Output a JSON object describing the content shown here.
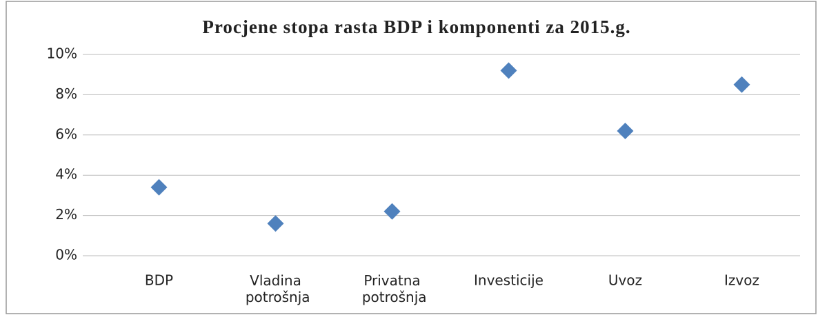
{
  "chart_data": {
    "type": "scatter",
    "title": "Procjene stopa rasta BDP i komponenti za 2015.g.",
    "categories": [
      "BDP",
      "Vladina potrošnja",
      "Privatna potrošnja",
      "Investicije",
      "Uvoz",
      "Izvoz"
    ],
    "values": [
      3.4,
      1.6,
      2.2,
      9.2,
      6.2,
      8.5
    ],
    "color": "#4f81bd",
    "ylim": [
      0,
      10
    ],
    "yticks": [
      {
        "value": 0,
        "label": "0%"
      },
      {
        "value": 2,
        "label": "2%"
      },
      {
        "value": 4,
        "label": "4%"
      },
      {
        "value": 6,
        "label": "6%"
      },
      {
        "value": 8,
        "label": "8%"
      },
      {
        "value": 10,
        "label": "10%"
      }
    ],
    "grid": true
  }
}
